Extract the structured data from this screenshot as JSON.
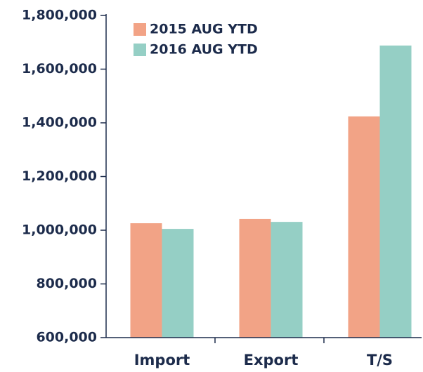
{
  "chart_data": {
    "type": "bar",
    "categories": [
      "Import",
      "Export",
      "T/S"
    ],
    "series": [
      {
        "name": "2015 AUG YTD",
        "color": "#f2a386",
        "values": [
          1026000,
          1042000,
          1424000
        ]
      },
      {
        "name": "2016 AUG YTD",
        "color": "#95cfc5",
        "values": [
          1005000,
          1031000,
          1688000
        ]
      }
    ],
    "ylim": [
      600000,
      1800000
    ],
    "yticks": [
      {
        "value": 600000,
        "label": "600,000"
      },
      {
        "value": 800000,
        "label": "800,000"
      },
      {
        "value": 1000000,
        "label": "1,000,000"
      },
      {
        "value": 1200000,
        "label": "1,200,000"
      },
      {
        "value": 1400000,
        "label": "1,400,000"
      },
      {
        "value": 1600000,
        "label": "1,600,000"
      },
      {
        "value": 1800000,
        "label": "1,800,000"
      }
    ],
    "legend": "upper left"
  }
}
